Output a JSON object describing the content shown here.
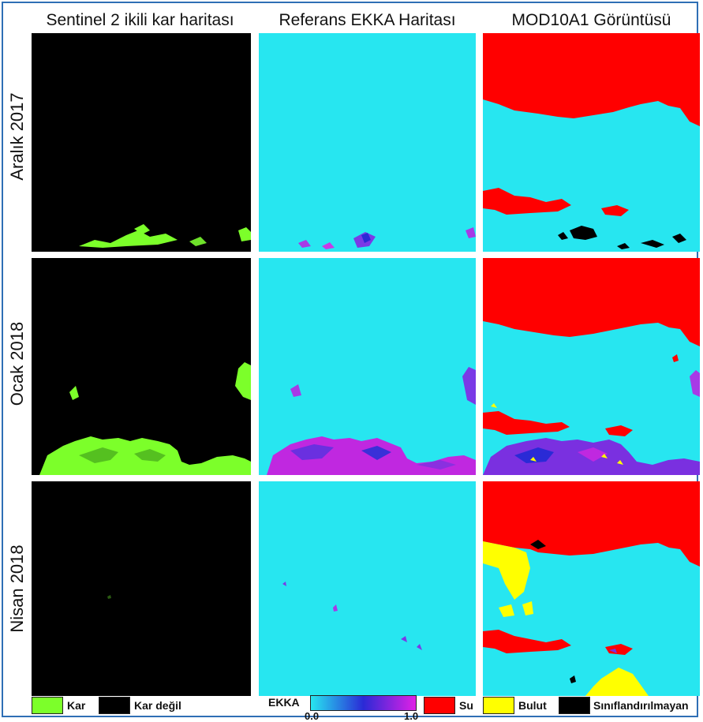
{
  "columns": {
    "sentinel": "Sentinel 2 ikili kar haritası",
    "reference": "Referans EKKA Haritası",
    "modis": "MOD10A1 Görüntüsü"
  },
  "rows": {
    "r1": "Aralık 2017",
    "r2": "Ocak 2018",
    "r3": "Nisan 2018"
  },
  "legend": {
    "snow": "Kar",
    "not_snow": "Kar değil",
    "ekka": "EKKA",
    "ekka_min": "0.0",
    "ekka_max": "1.0",
    "water": "Su",
    "cloud": "Bulut",
    "unclassified": "Sınıflandırılmayan"
  },
  "colors": {
    "snow": "#7cff2a",
    "not_snow": "#000000",
    "ekka_low": "#27e6f0",
    "ekka_mid": "#2a2ad6",
    "ekka_high": "#e020e6",
    "water": "#ff0000",
    "cloud": "#ffff00",
    "unclassified": "#000000",
    "border": "#2f6fb5"
  }
}
